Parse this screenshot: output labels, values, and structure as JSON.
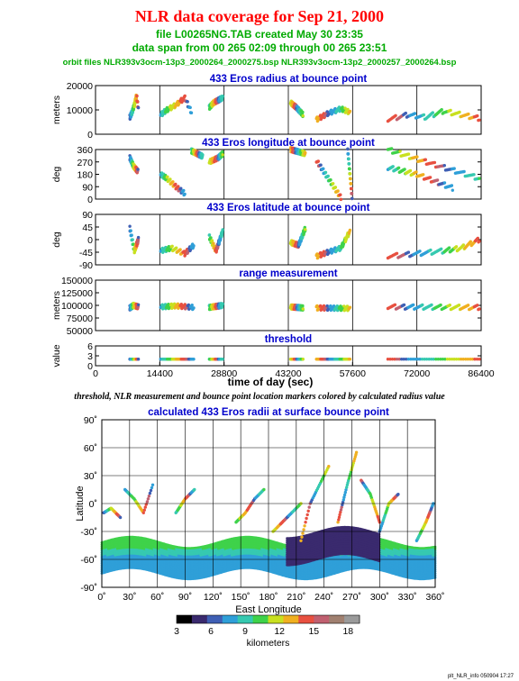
{
  "header": {
    "title": "NLR data coverage for Sep 21, 2000",
    "file_line": "file L00265NG.TAB created May 30 23:35",
    "span_line": "data span from 00 265 02:09 through 00 265 23:51",
    "orbit_line": "orbit files NLR393v3ocm-13p3_2000264_2000275.bsp NLR393v3ocm-13p2_2000257_2000264.bsp"
  },
  "caption": "threshold, NLR measurement and bounce point location markers colored by calculated radius value",
  "footer": "plt_NLR_info 050904 17:27",
  "colors": {
    "title": "#ff0000",
    "subtitle": "#00aa00",
    "panel_title": "#0000cc",
    "colormap": [
      "#000000",
      "#3a2a6e",
      "#3f5fb4",
      "#2f9fd8",
      "#36c9b0",
      "#3fd24a",
      "#c8e020",
      "#f0b020",
      "#e85040",
      "#c06070",
      "#a08070",
      "#9a9a9a"
    ]
  },
  "time_panels": {
    "xlabel": "time of day (sec)",
    "xticks": [
      "0",
      "14400",
      "28800",
      "43200",
      "57600",
      "72000",
      "86400"
    ]
  },
  "chart_data": [
    {
      "type": "scatter",
      "title": "433 Eros radius at bounce point",
      "ylabel": "meters",
      "xlim": [
        0,
        86400
      ],
      "ylim": [
        0,
        20000
      ],
      "yticks": [
        "0",
        "10000",
        "20000"
      ],
      "segments": [
        {
          "x": [
            7700,
            8200,
            8700,
            9200,
            9600
          ],
          "y": [
            7000,
            9000,
            12000,
            16000,
            10000
          ]
        },
        {
          "x": [
            14600,
            16000,
            18000,
            20000,
            21500
          ],
          "y": [
            8000,
            10000,
            12000,
            15000,
            9000
          ]
        },
        {
          "x": [
            25500,
            26500,
            27500,
            28500
          ],
          "y": [
            11000,
            13000,
            14000,
            15000
          ]
        },
        {
          "x": [
            43700,
            45000,
            46500
          ],
          "y": [
            13000,
            11000,
            8000
          ]
        },
        {
          "x": [
            49500,
            52000,
            55000,
            57000
          ],
          "y": [
            6000,
            8500,
            10500,
            9000
          ]
        },
        {
          "x": [
            65500,
            70000,
            74000,
            78000,
            82000,
            86000
          ],
          "y": [
            6000,
            8000,
            7000,
            9500,
            8000,
            6500
          ]
        }
      ]
    },
    {
      "type": "scatter",
      "title": "433 Eros longitude at bounce point",
      "ylabel": "deg",
      "xlim": [
        0,
        86400
      ],
      "ylim": [
        0,
        360
      ],
      "yticks": [
        "0",
        "90",
        "180",
        "270",
        "360"
      ],
      "segments": [
        {
          "x": [
            7700,
            8500,
            9500
          ],
          "y": [
            300,
            240,
            200
          ]
        },
        {
          "x": [
            14600,
            16000,
            18000,
            20000
          ],
          "y": [
            180,
            150,
            90,
            40
          ]
        },
        {
          "x": [
            21500,
            24000
          ],
          "y": [
            350,
            310
          ]
        },
        {
          "x": [
            25500,
            27500,
            28500
          ],
          "y": [
            270,
            300,
            330
          ]
        },
        {
          "x": [
            43700,
            47000
          ],
          "y": [
            360,
            330
          ]
        },
        {
          "x": [
            49500,
            55000
          ],
          "y": [
            280,
            10
          ]
        },
        {
          "x": [
            56500,
            57500
          ],
          "y": [
            360,
            0
          ]
        },
        {
          "x": [
            65500,
            72000,
            80000
          ],
          "y": [
            230,
            180,
            80
          ]
        },
        {
          "x": [
            65500,
            75000,
            86000
          ],
          "y": [
            360,
            260,
            150
          ]
        }
      ]
    },
    {
      "type": "scatter",
      "title": "433 Eros latitude at bounce point",
      "ylabel": "deg",
      "xlim": [
        0,
        86400
      ],
      "ylim": [
        -90,
        90
      ],
      "yticks": [
        "-90",
        "-45",
        "0",
        "45",
        "90"
      ],
      "segments": [
        {
          "x": [
            7700,
            8700,
            9600
          ],
          "y": [
            40,
            -40,
            0
          ]
        },
        {
          "x": [
            14600,
            17000,
            20000,
            22000
          ],
          "y": [
            -40,
            -30,
            -50,
            -20
          ]
        },
        {
          "x": [
            25500,
            27000,
            28500
          ],
          "y": [
            10,
            -40,
            30
          ]
        },
        {
          "x": [
            43700,
            45500,
            47000
          ],
          "y": [
            -10,
            -20,
            40
          ]
        },
        {
          "x": [
            49500,
            52000,
            55000,
            57000
          ],
          "y": [
            -60,
            -45,
            -30,
            30
          ]
        },
        {
          "x": [
            65500,
            72000,
            78000,
            82000,
            86000
          ],
          "y": [
            -60,
            -50,
            -40,
            -30,
            0
          ]
        }
      ]
    },
    {
      "type": "scatter",
      "title": "range measurement",
      "ylabel": "meters",
      "xlim": [
        0,
        86400
      ],
      "ylim": [
        50000,
        150000
      ],
      "yticks": [
        "50000",
        "75000",
        "100000",
        "125000",
        "150000"
      ],
      "segments": [
        {
          "x": [
            7700,
            8500,
            9600
          ],
          "y": [
            95000,
            100000,
            97000
          ]
        },
        {
          "x": [
            14600,
            18000,
            22000
          ],
          "y": [
            97000,
            99000,
            96000
          ]
        },
        {
          "x": [
            25500,
            28500
          ],
          "y": [
            96000,
            100000
          ]
        },
        {
          "x": [
            43700,
            46500
          ],
          "y": [
            97000,
            95000
          ]
        },
        {
          "x": [
            49500,
            57000
          ],
          "y": [
            95000,
            94000
          ]
        },
        {
          "x": [
            65500,
            86000
          ],
          "y": [
            97000,
            96000
          ]
        }
      ]
    },
    {
      "type": "scatter",
      "title": "threshold",
      "ylabel": "value",
      "xlim": [
        0,
        86400
      ],
      "ylim": [
        0,
        6
      ],
      "yticks": [
        "0",
        "3",
        "6"
      ],
      "segments": [
        {
          "x": [
            7700,
            9600
          ],
          "y": [
            2,
            2
          ]
        },
        {
          "x": [
            14600,
            22000
          ],
          "y": [
            2,
            2
          ]
        },
        {
          "x": [
            25500,
            28500
          ],
          "y": [
            2,
            2
          ]
        },
        {
          "x": [
            43700,
            46500
          ],
          "y": [
            2,
            2
          ]
        },
        {
          "x": [
            49500,
            57000
          ],
          "y": [
            2,
            2
          ]
        },
        {
          "x": [
            65500,
            86000
          ],
          "y": [
            2,
            2
          ]
        }
      ]
    },
    {
      "type": "scatter",
      "title": "calculated 433 Eros radii at surface bounce point",
      "xlabel": "East Longitude",
      "ylabel": "Latitude",
      "xlim": [
        0,
        360
      ],
      "ylim": [
        -90,
        90
      ],
      "xticks": [
        "0˚",
        "30˚",
        "60˚",
        "90˚",
        "120˚",
        "150˚",
        "180˚",
        "210˚",
        "240˚",
        "270˚",
        "300˚",
        "330˚",
        "360˚"
      ],
      "yticks": [
        "-90˚",
        "-60˚",
        "-30˚",
        "0˚",
        "30˚",
        "60˚",
        "90˚"
      ],
      "tracks": [
        {
          "lon": [
            2,
            10,
            20
          ],
          "lat": [
            -10,
            -5,
            -15
          ]
        },
        {
          "lon": [
            25,
            35,
            45,
            55
          ],
          "lat": [
            15,
            5,
            -10,
            20
          ]
        },
        {
          "lon": [
            80,
            90,
            100
          ],
          "lat": [
            -10,
            5,
            15
          ]
        },
        {
          "lon": [
            145,
            155,
            165,
            175
          ],
          "lat": [
            -20,
            -10,
            5,
            15
          ]
        },
        {
          "lon": [
            185,
            195,
            205,
            215
          ],
          "lat": [
            -30,
            -20,
            -10,
            0
          ]
        },
        {
          "lon": [
            215,
            225,
            235,
            245
          ],
          "lat": [
            -40,
            0,
            20,
            40
          ]
        },
        {
          "lon": [
            255,
            265,
            275
          ],
          "lat": [
            -20,
            20,
            55
          ]
        },
        {
          "lon": [
            280,
            290,
            300
          ],
          "lat": [
            25,
            10,
            -20
          ]
        },
        {
          "lon": [
            300,
            310,
            320
          ],
          "lat": [
            -30,
            0,
            10
          ]
        },
        {
          "lon": [
            340,
            350,
            358
          ],
          "lat": [
            -40,
            -20,
            0
          ]
        }
      ],
      "bands": [
        {
          "lon": [
            0,
            360
          ],
          "lat": [
            -75,
            -40
          ]
        },
        {
          "lon": [
            200,
            300
          ],
          "lat": [
            -60,
            -30
          ]
        }
      ],
      "colorbar": {
        "label": "kilometers",
        "ticks": [
          "3",
          "6",
          "9",
          "12",
          "15",
          "18"
        ],
        "range": [
          3,
          19
        ]
      }
    }
  ]
}
